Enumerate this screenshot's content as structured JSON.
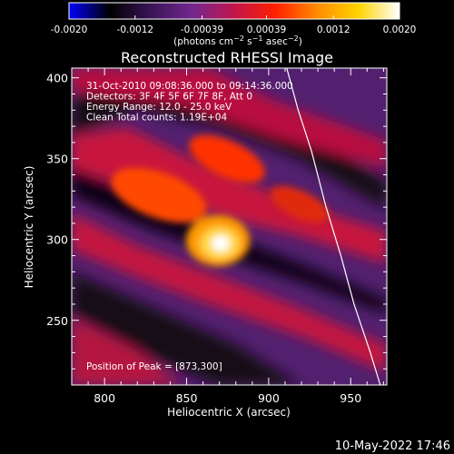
{
  "colorbar": {
    "ticks": [
      "-0.0020",
      "-0.0012",
      "-0.00039",
      "0.00039",
      "0.0012",
      "0.0020"
    ],
    "unit_label": "(photons cm-2 s-1 asec-2)",
    "range": [
      -0.002,
      0.002
    ],
    "colormap": [
      "#0000ff",
      "#000000",
      "#3a1558",
      "#74278f",
      "#c2144a",
      "#ff2000",
      "#ff8b00",
      "#ffd300",
      "#ffffff"
    ]
  },
  "title": "Reconstructed RHESSI Image",
  "info_lines": [
    "31-Oct-2010 09:08:36.000 to 09:14:36.000",
    "Detectors: 3F 4F 5F 6F 7F 8F, Att 0",
    "Energy Range: 12.0 - 25.0 keV",
    "Clean      Total counts: 1.19E+04"
  ],
  "peak_label": "Position of Peak = [873,300]",
  "footer_timestamp": "10-May-2022 17:46",
  "chart_data": {
    "type": "heatmap",
    "title": "Reconstructed RHESSI Image",
    "xlabel": "Heliocentric X (arcsec)",
    "ylabel": "Heliocentric Y (arcsec)",
    "xlim": [
      780,
      972
    ],
    "ylim": [
      210,
      406
    ],
    "xticks": [
      800,
      850,
      900,
      950
    ],
    "yticks": [
      250,
      300,
      350,
      400
    ],
    "xtick_labels": [
      "800",
      "850",
      "900",
      "950"
    ],
    "ytick_labels": [
      "250",
      "300",
      "350",
      "400"
    ],
    "peak": [
      873,
      300
    ],
    "limb_curve": [
      [
        911,
        406
      ],
      [
        918,
        380
      ],
      [
        926,
        355
      ],
      [
        935,
        320
      ],
      [
        944,
        290
      ],
      [
        952,
        260
      ],
      [
        962,
        230
      ],
      [
        968,
        210
      ]
    ]
  }
}
